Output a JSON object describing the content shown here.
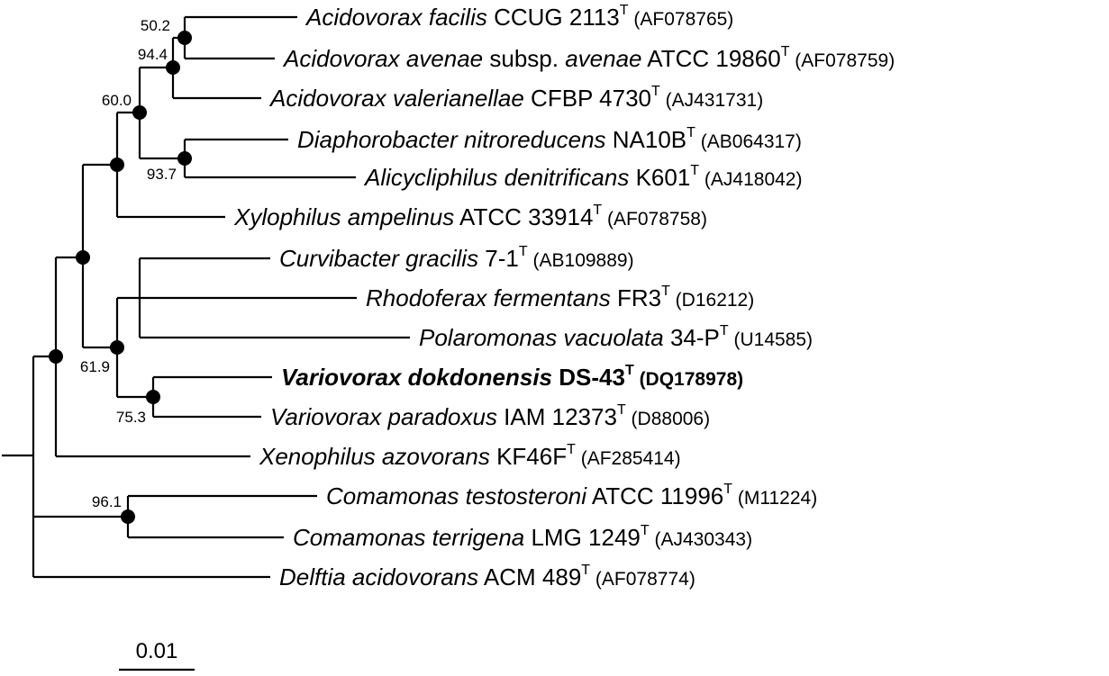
{
  "taxa": [
    {
      "species": "Acidovorax facilis",
      "strain": "CCUG 2113",
      "sup": "T",
      "accession": "(AF078765)"
    },
    {
      "species": "Acidovorax avenae",
      "mid": "subsp.",
      "subspecies": "avenae",
      "strain": "ATCC 19860",
      "sup": "T",
      "accession": "(AF078759)"
    },
    {
      "species": "Acidovorax valerianellae",
      "strain": "CFBP 4730",
      "sup": "T",
      "accession": "(AJ431731)"
    },
    {
      "species": "Diaphorobacter nitroreducens",
      "strain": "NA10B",
      "sup": "T",
      "accession": "(AB064317)"
    },
    {
      "species": "Alicycliphilus denitrificans",
      "strain": "K601",
      "sup": "T",
      "accession": "(AJ418042)"
    },
    {
      "species": "Xylophilus ampelinus",
      "strain": "ATCC 33914",
      "sup": "T",
      "accession": "(AF078758)"
    },
    {
      "species": "Curvibacter gracilis",
      "strain": "7-1",
      "sup": "T",
      "accession": "(AB109889)"
    },
    {
      "species": "Rhodoferax fermentans",
      "strain": "FR3",
      "sup": "T",
      "accession": "(D16212)"
    },
    {
      "species": "Polaromonas vacuolata",
      "strain": "34-P",
      "sup": "T",
      "accession": "(U14585)"
    },
    {
      "species": "Variovorax dokdonensis",
      "strain": "DS-43",
      "sup": "T",
      "accession": "(DQ178978)",
      "highlight": true
    },
    {
      "species": "Variovorax paradoxus",
      "strain": "IAM 12373",
      "sup": "T",
      "accession": "(D88006)"
    },
    {
      "species": "Xenophilus azovorans",
      "strain": "KF46F",
      "sup": "T",
      "accession": "(AF285414)"
    },
    {
      "species": "Comamonas testosteroni",
      "strain": "ATCC 11996",
      "sup": "T",
      "accession": "(M11224)"
    },
    {
      "species": "Comamonas terrigena",
      "strain": "LMG 1249",
      "sup": "T",
      "accession": "(AJ430343)"
    },
    {
      "species": "Delftia acidovorans",
      "strain": "ACM 489",
      "sup": "T",
      "accession": "(AF078774)"
    }
  ],
  "bootstrap": [
    "50.2",
    "94.4",
    "60.0",
    "93.7",
    "61.9",
    "75.3",
    "96.1"
  ],
  "scale_bar": {
    "label": "0.01"
  }
}
